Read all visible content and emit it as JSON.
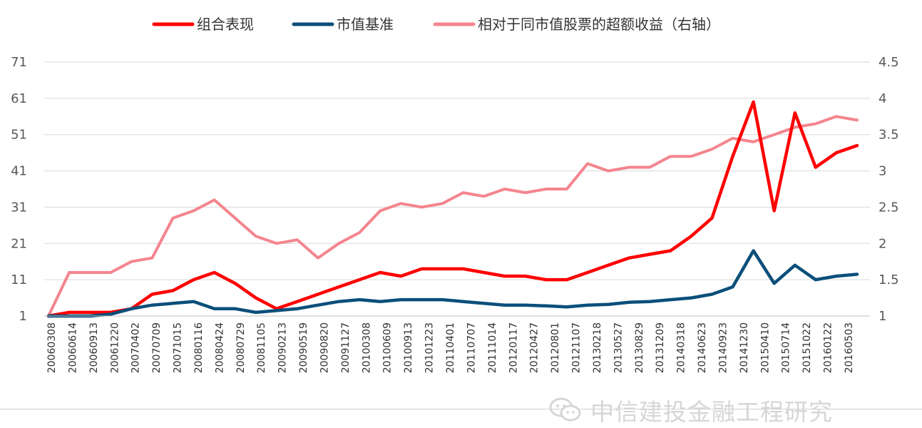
{
  "chart_data": {
    "type": "line",
    "legend_position": "top",
    "grid": true,
    "y_left": {
      "ticks": [
        1,
        11,
        21,
        31,
        41,
        51,
        61,
        71
      ],
      "range": [
        1,
        71
      ]
    },
    "y_right": {
      "ticks": [
        1,
        1.5,
        2,
        2.5,
        3,
        3.5,
        4,
        4.5
      ],
      "range": [
        1,
        4.5
      ]
    },
    "x_tick_labels": [
      "20060308",
      "20060614",
      "20060913",
      "20061220",
      "20070402",
      "20070709",
      "20071015",
      "20080116",
      "20080424",
      "20080729",
      "20081105",
      "20090213",
      "20090519",
      "20090820",
      "20091127",
      "20100308",
      "20100609",
      "20100913",
      "20101223",
      "20110401",
      "20110707",
      "20111014",
      "20120117",
      "20120427",
      "20120801",
      "20121107",
      "20130218",
      "20130527",
      "20130829",
      "20131209",
      "20140318",
      "20140623",
      "20140923",
      "20141230",
      "20150410",
      "20150714",
      "20151022",
      "20160122",
      "20160503"
    ],
    "series": [
      {
        "name": "组合表现",
        "axis": "left",
        "color": "#ff0000",
        "values": [
          1,
          2,
          2,
          2,
          3,
          7,
          8,
          11,
          13,
          10,
          6,
          3,
          5,
          7,
          9,
          11,
          13,
          12,
          14,
          14,
          14,
          13,
          12,
          12,
          11,
          11,
          13,
          15,
          17,
          18,
          19,
          23,
          28,
          45,
          60,
          30,
          57,
          42,
          46,
          48
        ]
      },
      {
        "name": "市值基准",
        "axis": "left",
        "color": "#0b4f7a",
        "values": [
          1,
          1,
          1,
          1.5,
          3,
          4,
          4.5,
          5,
          3,
          3,
          2,
          2.5,
          3,
          4,
          5,
          5.5,
          5,
          5.5,
          5.5,
          5.5,
          5,
          4.5,
          4,
          4,
          3.8,
          3.5,
          4,
          4.2,
          4.8,
          5,
          5.5,
          6,
          7,
          9,
          19,
          10,
          15,
          11,
          12,
          12.5
        ]
      },
      {
        "name": "相对于同市值股票的超额收益（右轴）",
        "axis": "right",
        "color": "#f4858e",
        "values": [
          1,
          1.6,
          1.6,
          1.6,
          1.75,
          1.8,
          2.35,
          2.45,
          2.6,
          2.35,
          2.1,
          2.0,
          2.05,
          1.8,
          2.0,
          2.15,
          2.45,
          2.55,
          2.5,
          2.55,
          2.7,
          2.65,
          2.75,
          2.7,
          2.75,
          2.75,
          3.1,
          3.0,
          3.05,
          3.05,
          3.2,
          3.2,
          3.3,
          3.45,
          3.4,
          3.5,
          3.6,
          3.65,
          3.75,
          3.7
        ]
      }
    ]
  },
  "legend": [
    {
      "label": "组合表现",
      "color": "#ff0000"
    },
    {
      "label": "市值基准",
      "color": "#0b4f7a"
    },
    {
      "label": "相对于同市值股票的超额收益（右轴）",
      "color": "#f4858e"
    }
  ],
  "watermark": {
    "text": "中信建投金融工程研究",
    "icon": "wechat-icon"
  }
}
